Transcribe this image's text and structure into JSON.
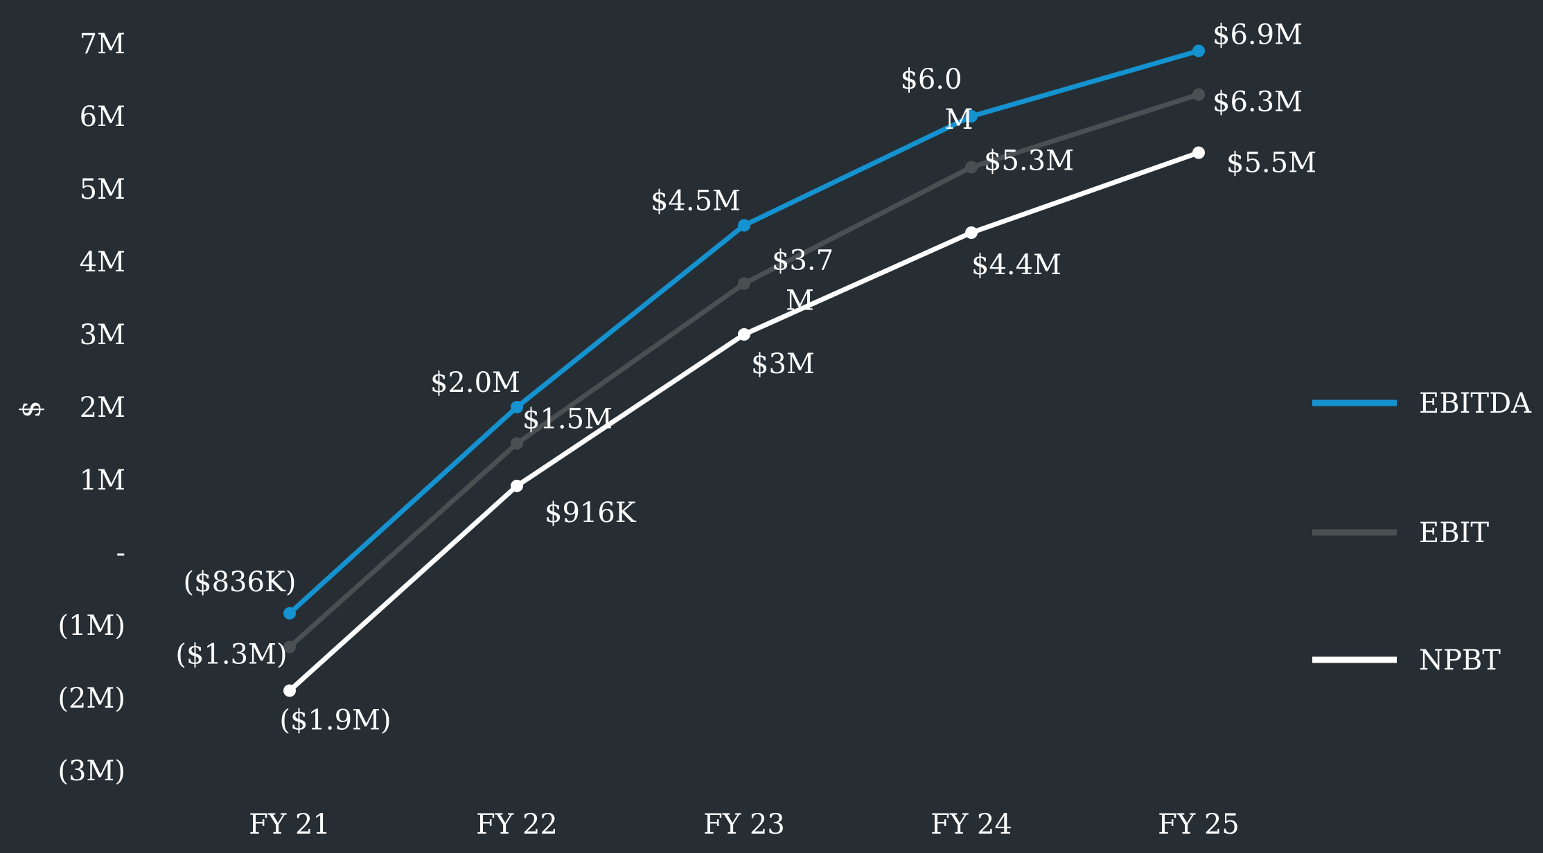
{
  "chart_data": {
    "type": "line",
    "x": [
      "FY 21",
      "FY 22",
      "FY 23",
      "FY 24",
      "FY 25"
    ],
    "ylabel": "$",
    "ylim": [
      -3000000,
      7000000
    ],
    "y_ticks": [
      {
        "value": 7000000,
        "label": "7M"
      },
      {
        "value": 6000000,
        "label": "6M"
      },
      {
        "value": 5000000,
        "label": "5M"
      },
      {
        "value": 4000000,
        "label": "4M"
      },
      {
        "value": 3000000,
        "label": "3M"
      },
      {
        "value": 2000000,
        "label": "2M"
      },
      {
        "value": 1000000,
        "label": "1M"
      },
      {
        "value": 0,
        "label": "-"
      },
      {
        "value": -1000000,
        "label": "(1M)"
      },
      {
        "value": -2000000,
        "label": "(2M)"
      },
      {
        "value": -3000000,
        "label": "(3M)"
      }
    ],
    "grid": false,
    "legend_position": "right",
    "series": [
      {
        "name": "EBITDA",
        "color": "#1592d0",
        "values": [
          -836000,
          2000000,
          4500000,
          6000000,
          6900000
        ],
        "labels": [
          "($836K)",
          "$2.0M",
          "$4.5M",
          "$6.0 M",
          "$6.9M"
        ]
      },
      {
        "name": "EBIT",
        "color": "#4a5052",
        "values": [
          -1300000,
          1500000,
          3700000,
          5300000,
          6300000
        ],
        "labels": [
          "($1.3M)",
          "$1.5M",
          "$3.7 M",
          "$5.3M",
          "$6.3M"
        ]
      },
      {
        "name": "NPBT",
        "color": "#ffffff",
        "values": [
          -1900000,
          916000,
          3000000,
          4400000,
          5500000
        ],
        "labels": [
          "($1.9M)",
          "$916K",
          "$3M",
          "$4.4M",
          "$5.5M"
        ]
      }
    ]
  }
}
